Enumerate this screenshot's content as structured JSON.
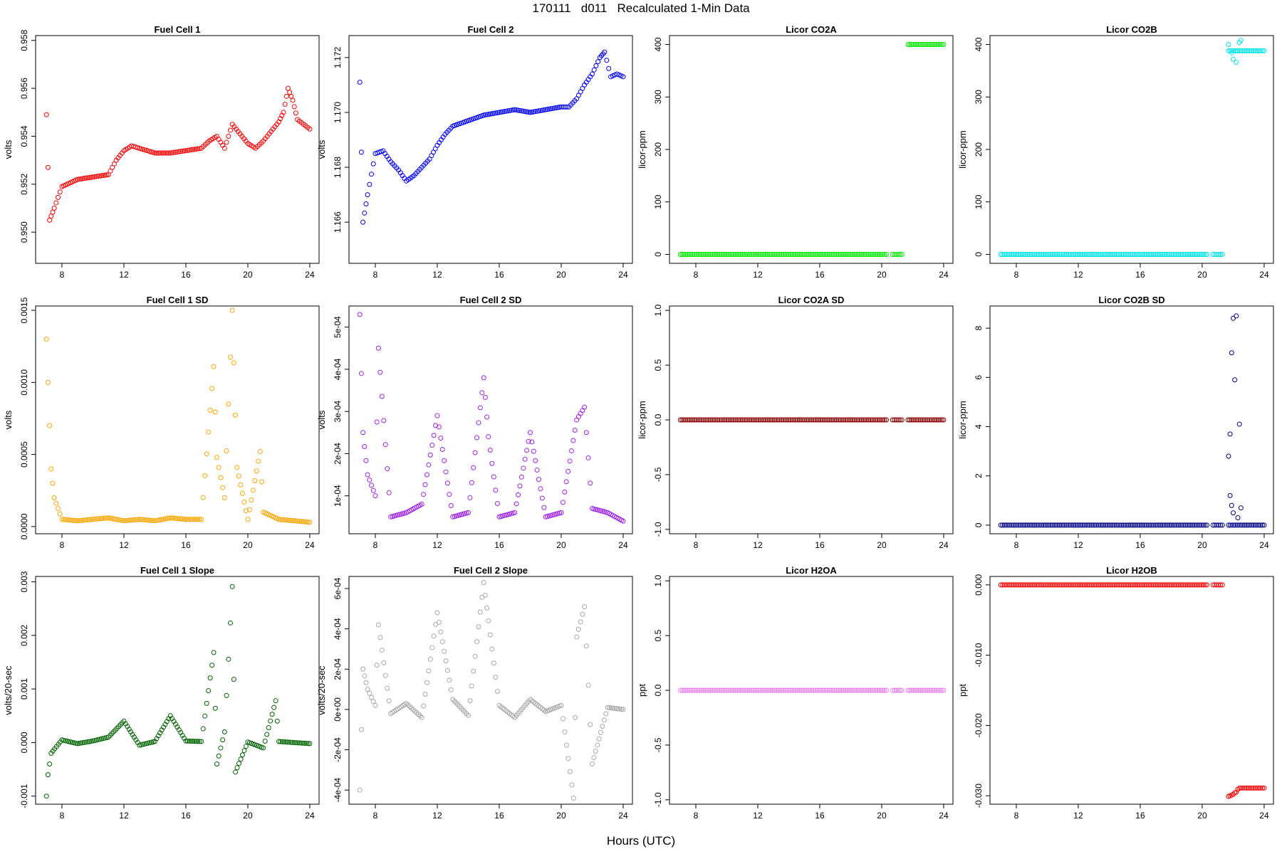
{
  "figure": {
    "title": "170111   d011   Recalculated 1-Min Data",
    "xlabel": "Hours (UTC)"
  },
  "chart_data": [
    {
      "type": "scatter",
      "title": "Fuel Cell 1",
      "xlabel": "",
      "ylabel": "volts",
      "color": "#ff0000",
      "xlim": [
        6.3,
        24.6
      ],
      "ylim": [
        0.9487,
        0.9582
      ],
      "xticks": [
        "8",
        "12",
        "16",
        "20",
        "24"
      ],
      "yticks": [
        "0.950",
        "0.952",
        "0.954",
        "0.956",
        "0.958"
      ],
      "ytick_values": [
        0.95,
        0.952,
        0.954,
        0.956,
        0.958
      ],
      "series": [
        {
          "x": [
            7.0,
            7.2,
            7.5,
            8.0,
            9.0,
            10.0,
            11.0,
            11.5,
            12.0,
            12.5,
            13.0,
            14.0,
            15.0,
            16.0,
            17.0,
            17.5,
            18.0,
            18.5,
            19.0,
            19.5,
            20.0,
            20.5,
            21.0,
            21.5,
            22.0,
            22.3,
            22.6,
            22.9,
            23.2,
            23.6,
            24.0
          ],
          "y": [
            0.9549,
            0.9505,
            0.951,
            0.9519,
            0.9522,
            0.9523,
            0.9524,
            0.953,
            0.9534,
            0.9536,
            0.9535,
            0.9533,
            0.9533,
            0.9534,
            0.9535,
            0.9538,
            0.954,
            0.9535,
            0.9545,
            0.9541,
            0.9537,
            0.9535,
            0.9538,
            0.9542,
            0.9546,
            0.955,
            0.956,
            0.9555,
            0.9547,
            0.9545,
            0.9543
          ]
        }
      ]
    },
    {
      "type": "scatter",
      "title": "Fuel Cell 2",
      "xlabel": "",
      "ylabel": "volts",
      "color": "#0000ff",
      "xlim": [
        6.3,
        24.6
      ],
      "ylim": [
        1.1645,
        1.1728
      ],
      "xticks": [
        "8",
        "12",
        "16",
        "20",
        "24"
      ],
      "yticks": [
        "1.166",
        "1.168",
        "1.170",
        "1.172"
      ],
      "ytick_values": [
        1.166,
        1.168,
        1.17,
        1.172
      ],
      "series": [
        {
          "x": [
            7.0,
            7.2,
            7.5,
            8.0,
            8.5,
            9.0,
            9.5,
            10.0,
            10.5,
            11.0,
            11.5,
            12.0,
            12.5,
            13.0,
            14.0,
            15.0,
            16.0,
            17.0,
            18.0,
            19.0,
            20.0,
            20.5,
            21.0,
            21.5,
            22.0,
            22.5,
            22.8,
            23.2,
            23.6,
            24.0
          ],
          "y": [
            1.1711,
            1.166,
            1.167,
            1.1685,
            1.1686,
            1.1682,
            1.1679,
            1.1675,
            1.1677,
            1.168,
            1.1683,
            1.1688,
            1.1692,
            1.1695,
            1.1697,
            1.1699,
            1.17,
            1.1701,
            1.17,
            1.1701,
            1.1702,
            1.1702,
            1.1705,
            1.171,
            1.1714,
            1.172,
            1.1722,
            1.1713,
            1.1714,
            1.1713
          ]
        }
      ]
    },
    {
      "type": "scatter",
      "title": "Licor CO2A",
      "xlabel": "",
      "ylabel": "licor-ppm",
      "color": "#00ee00",
      "xlim": [
        6.3,
        24.6
      ],
      "ylim": [
        -17,
        417
      ],
      "xticks": [
        "8",
        "12",
        "16",
        "20",
        "24"
      ],
      "yticks": [
        "0",
        "100",
        "200",
        "300",
        "400"
      ],
      "ytick_values": [
        0,
        100,
        200,
        300,
        400
      ],
      "series": [
        {
          "segments": [
            {
              "x0": 7.0,
              "x1": 20.3,
              "y": 0
            },
            {
              "x0": 20.7,
              "x1": 21.3,
              "y": 0
            },
            {
              "x0": 21.7,
              "x1": 24.0,
              "y": 400
            }
          ]
        }
      ]
    },
    {
      "type": "scatter",
      "title": "Licor CO2B",
      "xlabel": "",
      "ylabel": "licor-ppm",
      "color": "#00e5ee",
      "xlim": [
        6.3,
        24.6
      ],
      "ylim": [
        -17,
        417
      ],
      "xticks": [
        "8",
        "12",
        "16",
        "20",
        "24"
      ],
      "yticks": [
        "0",
        "100",
        "200",
        "300",
        "400"
      ],
      "ytick_values": [
        0,
        100,
        200,
        300,
        400
      ],
      "series": [
        {
          "segments": [
            {
              "x0": 7.0,
              "x1": 20.3,
              "y": 0
            },
            {
              "x0": 20.7,
              "x1": 21.3,
              "y": 0
            },
            {
              "x0": 21.7,
              "x1": 24.0,
              "y": 388
            }
          ],
          "x": [
            21.7,
            21.9,
            22.0,
            22.2,
            22.4,
            22.5
          ],
          "y": [
            400,
            384,
            372,
            366,
            404,
            408
          ]
        }
      ]
    },
    {
      "type": "scatter",
      "title": "Fuel Cell 1 SD",
      "xlabel": "",
      "ylabel": "volts",
      "color": "#ffa500",
      "xlim": [
        6.3,
        24.6
      ],
      "ylim": [
        -5e-05,
        0.00153
      ],
      "xticks": [
        "8",
        "12",
        "16",
        "20",
        "24"
      ],
      "yticks": [
        "0.0000",
        "0.0005",
        "0.0010",
        "0.0015"
      ],
      "ytick_values": [
        0,
        0.0005,
        0.001,
        0.0015
      ],
      "series": [
        {
          "x": [
            7.0,
            7.3,
            7.5,
            8.0,
            9.0,
            10.0,
            11.0,
            12.0,
            13.0,
            14.0,
            15.0,
            16.0,
            17.0,
            17.8,
            18.0,
            18.5,
            19.0,
            19.3,
            20.0,
            20.8,
            21.0,
            22.0,
            23.0,
            24.0
          ],
          "y": [
            0.0013,
            0.0004,
            0.0002,
            5e-05,
            4e-05,
            5e-05,
            6e-05,
            4e-05,
            5e-05,
            4e-05,
            6e-05,
            5e-05,
            5e-05,
            0.00111,
            0.00048,
            0.0002,
            0.0015,
            0.00041,
            5e-05,
            0.00052,
            0.0001,
            5e-05,
            4e-05,
            3e-05
          ]
        }
      ]
    },
    {
      "type": "scatter",
      "title": "Fuel Cell 2 SD",
      "xlabel": "",
      "ylabel": "volts",
      "color": "#a020f0",
      "xlim": [
        6.3,
        24.6
      ],
      "ylim": [
        1e-05,
        0.00055
      ],
      "xticks": [
        "8",
        "12",
        "16",
        "20",
        "24"
      ],
      "yticks": [
        "1e-04",
        "2e-04",
        "3e-04",
        "4e-04",
        "5e-04"
      ],
      "ytick_values": [
        0.0001,
        0.0002,
        0.0003,
        0.0004,
        0.0005
      ],
      "series": [
        {
          "x": [
            7.0,
            7.2,
            7.5,
            8.0,
            8.2,
            9.0,
            10.0,
            11.0,
            12.0,
            13.0,
            14.0,
            15.0,
            15.3,
            16.0,
            17.0,
            18.0,
            19.0,
            20.0,
            21.0,
            21.5,
            22.0,
            23.0,
            24.0
          ],
          "y": [
            0.00053,
            0.00025,
            0.00015,
            0.0001,
            0.00045,
            5e-05,
            6e-05,
            8e-05,
            0.00029,
            5e-05,
            6e-05,
            0.00038,
            0.00024,
            5e-05,
            6e-05,
            0.00025,
            5e-05,
            6e-05,
            0.00028,
            0.00031,
            7e-05,
            6e-05,
            4e-05
          ]
        }
      ]
    },
    {
      "type": "scatter",
      "title": "Licor CO2A SD",
      "xlabel": "",
      "ylabel": "licor-ppm",
      "color": "#8b0000",
      "xlim": [
        6.3,
        24.6
      ],
      "ylim": [
        -1.04,
        1.04
      ],
      "xticks": [
        "8",
        "12",
        "16",
        "20",
        "24"
      ],
      "yticks": [
        "-1.0",
        "-0.5",
        "0.0",
        "0.5",
        "1.0"
      ],
      "ytick_values": [
        -1.0,
        -0.5,
        0.0,
        0.5,
        1.0
      ],
      "series": [
        {
          "segments": [
            {
              "x0": 7.0,
              "x1": 20.3,
              "y": 0
            },
            {
              "x0": 20.7,
              "x1": 21.3,
              "y": 0
            },
            {
              "x0": 21.7,
              "x1": 24.0,
              "y": 0
            }
          ]
        }
      ]
    },
    {
      "type": "scatter",
      "title": "Licor CO2B SD",
      "xlabel": "",
      "ylabel": "licor-ppm",
      "color": "#00008b",
      "xlim": [
        6.3,
        24.6
      ],
      "ylim": [
        -0.35,
        8.9
      ],
      "xticks": [
        "8",
        "12",
        "16",
        "20",
        "24"
      ],
      "yticks": [
        "0",
        "2",
        "4",
        "6",
        "8"
      ],
      "ytick_values": [
        0,
        2,
        4,
        6,
        8
      ],
      "series": [
        {
          "segments": [
            {
              "x0": 7.0,
              "x1": 20.3,
              "y": 0
            },
            {
              "x0": 20.7,
              "x1": 21.3,
              "y": 0
            },
            {
              "x0": 21.7,
              "x1": 24.0,
              "y": 0
            }
          ],
          "x": [
            21.7,
            21.8,
            21.9,
            22.0,
            22.1,
            22.2,
            22.4,
            22.5,
            21.8,
            21.9,
            22.0,
            22.3
          ],
          "y": [
            2.8,
            3.7,
            7.0,
            8.4,
            5.9,
            8.5,
            4.1,
            0.7,
            1.2,
            0.8,
            0.5,
            0.3
          ]
        }
      ]
    },
    {
      "type": "scatter",
      "title": "Fuel Cell 1 Slope",
      "xlabel": "",
      "ylabel": "volts/20-sec",
      "color": "#006400",
      "xlim": [
        6.3,
        24.6
      ],
      "ylim": [
        -0.00115,
        0.0031
      ],
      "xticks": [
        "8",
        "12",
        "16",
        "20",
        "24"
      ],
      "yticks": [
        "-0.001",
        "0.000",
        "0.001",
        "0.002",
        "0.003"
      ],
      "ytick_values": [
        -0.001,
        0.0,
        0.001,
        0.002,
        0.003
      ],
      "series": [
        {
          "x": [
            7.0,
            7.1,
            7.3,
            8.0,
            9.0,
            10.0,
            11.0,
            12.0,
            13.0,
            14.0,
            15.0,
            16.0,
            17.0,
            17.8,
            18.0,
            18.5,
            19.0,
            19.2,
            20.0,
            21.0,
            21.8,
            22.0,
            23.0,
            24.0
          ],
          "y": [
            -0.001,
            -0.0006,
            -0.0002,
            5e-05,
            -2e-05,
            3e-05,
            0.0001,
            0.0004,
            -5e-05,
            2e-05,
            0.0005,
            3e-05,
            2e-05,
            0.00168,
            -0.0004,
            0.0002,
            0.00291,
            -0.00055,
            1e-05,
            -0.0001,
            0.00078,
            2e-05,
            0.0,
            -2e-05
          ]
        }
      ]
    },
    {
      "type": "scatter",
      "title": "Fuel Cell 2 Slope",
      "xlabel": "",
      "ylabel": "volts/20-sec",
      "color": "#a9a9a9",
      "xlim": [
        6.3,
        24.6
      ],
      "ylim": [
        -0.00047,
        0.00066
      ],
      "xticks": [
        "8",
        "12",
        "16",
        "20",
        "24"
      ],
      "yticks": [
        "-4e-04",
        "-2e-04",
        "0e+00",
        "2e-04",
        "4e-04",
        "6e-04"
      ],
      "ytick_values": [
        -0.0004,
        -0.0002,
        0.0,
        0.0002,
        0.0004,
        0.0006
      ],
      "series": [
        {
          "x": [
            7.0,
            7.2,
            7.5,
            8.0,
            8.2,
            9.0,
            10.0,
            11.0,
            12.0,
            13.0,
            14.0,
            15.0,
            15.3,
            16.0,
            17.0,
            18.0,
            19.0,
            20.0,
            20.8,
            21.0,
            21.5,
            22.0,
            23.0,
            24.0
          ],
          "y": [
            -0.0004,
            0.0002,
            0.0001,
            2e-05,
            0.00042,
            -2e-05,
            3e-05,
            -4e-05,
            0.00048,
            5e-05,
            -3e-05,
            0.00063,
            0.00044,
            2e-05,
            -4e-05,
            5e-05,
            -1e-05,
            2e-05,
            -0.00044,
            0.00036,
            0.00051,
            -0.00027,
            1e-05,
            0.0
          ]
        }
      ]
    },
    {
      "type": "scatter",
      "title": "Licor H2OA",
      "xlabel": "",
      "ylabel": "ppt",
      "color": "#ee82ee",
      "xlim": [
        6.3,
        24.6
      ],
      "ylim": [
        -1.04,
        1.04
      ],
      "xticks": [
        "8",
        "12",
        "16",
        "20",
        "24"
      ],
      "yticks": [
        "-1.0",
        "-0.5",
        "0.0",
        "0.5",
        "1.0"
      ],
      "ytick_values": [
        -1.0,
        -0.5,
        0.0,
        0.5,
        1.0
      ],
      "series": [
        {
          "segments": [
            {
              "x0": 7.0,
              "x1": 20.3,
              "y": 0
            },
            {
              "x0": 20.7,
              "x1": 21.3,
              "y": 0
            },
            {
              "x0": 21.7,
              "x1": 24.0,
              "y": 0
            }
          ]
        }
      ]
    },
    {
      "type": "scatter",
      "title": "Licor H2OB",
      "xlabel": "",
      "ylabel": "ppt",
      "color": "#ff0000",
      "xlim": [
        6.3,
        24.6
      ],
      "ylim": [
        -0.0312,
        0.0012
      ],
      "xticks": [
        "8",
        "12",
        "16",
        "20",
        "24"
      ],
      "yticks": [
        "-0.030",
        "-0.020",
        "-0.010",
        "0.000"
      ],
      "ytick_values": [
        -0.03,
        -0.02,
        -0.01,
        0.0
      ],
      "series": [
        {
          "segments": [
            {
              "x0": 7.0,
              "x1": 20.3,
              "y": 0
            },
            {
              "x0": 20.7,
              "x1": 21.3,
              "y": 0
            },
            {
              "x0": 22.4,
              "x1": 24.0,
              "y": -0.0289
            }
          ],
          "x": [
            21.7,
            21.8,
            21.9,
            22.0,
            22.1,
            22.2,
            22.3
          ],
          "y": [
            -0.0301,
            -0.03,
            -0.0299,
            -0.0298,
            -0.0296,
            -0.0295,
            -0.0291
          ]
        }
      ]
    }
  ]
}
